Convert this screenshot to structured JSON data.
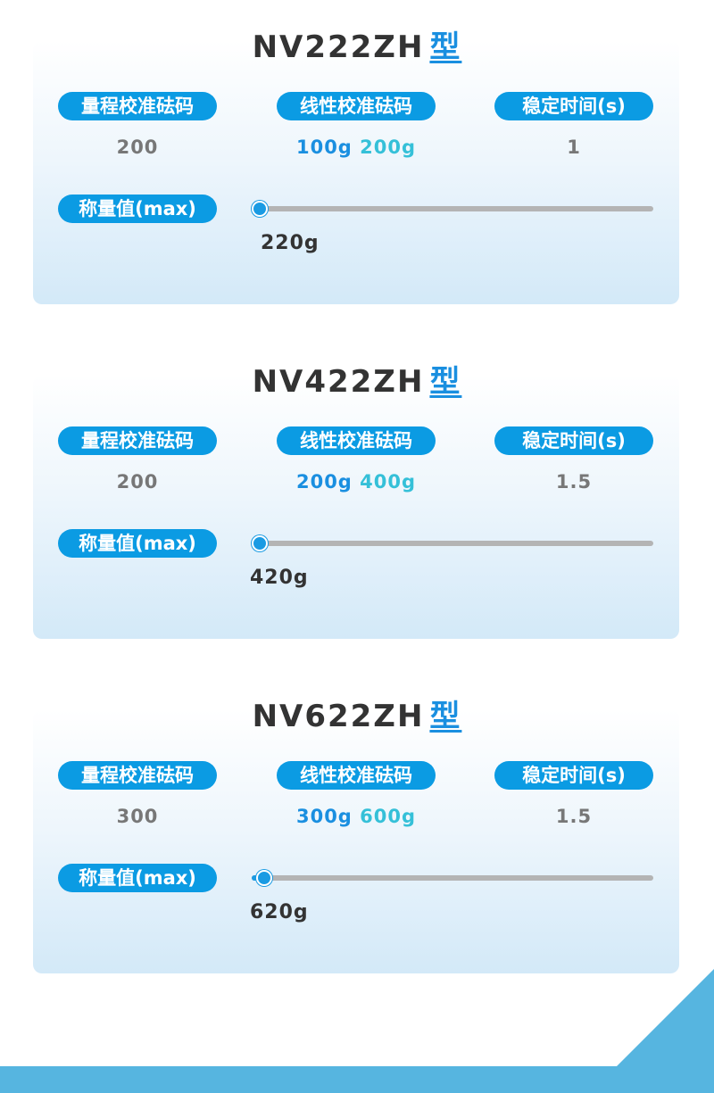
{
  "models": [
    {
      "name": "NV222ZH",
      "type_label": "型",
      "range_label": "量程校准砝码",
      "range_value": "200",
      "linear_label": "线性校准砝码",
      "linear_values": [
        "100g",
        "200g"
      ],
      "stable_label": "稳定时间(s)",
      "stable_value": "1",
      "max_label": "称量值(max)",
      "max_value": "220g",
      "slider_percent": 2
    },
    {
      "name": "NV422ZH",
      "type_label": "型",
      "range_label": "量程校准砝码",
      "range_value": "200",
      "linear_label": "线性校准砝码",
      "linear_values": [
        "200g",
        "400g"
      ],
      "stable_label": "稳定时间(s)",
      "stable_value": "1.5",
      "max_label": "称量值(max)",
      "max_value": "420g",
      "slider_percent": 2
    },
    {
      "name": "NV622ZH",
      "type_label": "型",
      "range_label": "量程校准砝码",
      "range_value": "300",
      "linear_label": "线性校准砝码",
      "linear_values": [
        "300g",
        "600g"
      ],
      "stable_label": "稳定时间(s)",
      "stable_value": "1.5",
      "max_label": "称量值(max)",
      "max_value": "620g",
      "slider_percent": 3
    }
  ],
  "colors": {
    "accent": "#0b9be3",
    "secondary": "#35c0d8",
    "footer": "#56b5e0"
  }
}
